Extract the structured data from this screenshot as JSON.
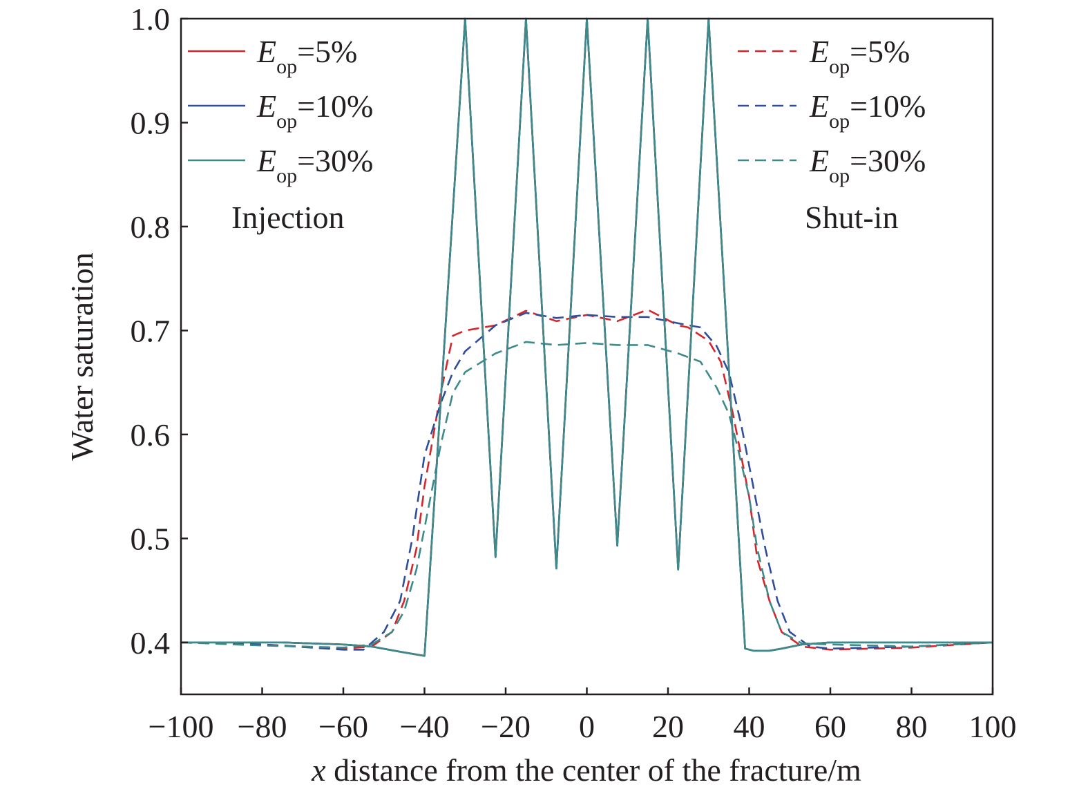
{
  "chart_data": {
    "type": "line",
    "xlabel": {
      "var": "x",
      "rest": " distance from the center of the fracture/m"
    },
    "ylabel": "Water saturation",
    "xlim": [
      -100,
      100
    ],
    "ylim": [
      0.35,
      1.0
    ],
    "xticks": [
      -100,
      -80,
      -60,
      -40,
      -20,
      0,
      20,
      40,
      60,
      80,
      100
    ],
    "yticks": [
      0.4,
      0.5,
      0.6,
      0.7,
      0.8,
      0.9,
      1.0
    ],
    "xtick_labels": [
      "−100",
      "−80",
      "−60",
      "−40",
      "−20",
      "0",
      "20",
      "40",
      "60",
      "80",
      "100"
    ],
    "ytick_labels": [
      "0.4",
      "0.5",
      "0.6",
      "0.7",
      "0.8",
      "0.9",
      "1.0"
    ],
    "grid": false,
    "legends": [
      {
        "position": "top-left",
        "title": "Injection",
        "style": "solid",
        "entries": [
          {
            "base": "E",
            "sub": "op",
            "rest": "=5%",
            "color": "#d7262b"
          },
          {
            "base": "E",
            "sub": "op",
            "rest": "=10%",
            "color": "#2f4d9a"
          },
          {
            "base": "E",
            "sub": "op",
            "rest": "=30%",
            "color": "#3e8a8b"
          }
        ]
      },
      {
        "position": "top-right",
        "title": "Shut-in",
        "style": "dashed",
        "entries": [
          {
            "base": "E",
            "sub": "op",
            "rest": "=5%",
            "color": "#d7262b"
          },
          {
            "base": "E",
            "sub": "op",
            "rest": "=10%",
            "color": "#2f4d9a"
          },
          {
            "base": "E",
            "sub": "op",
            "rest": "=30%",
            "color": "#3e8a8b"
          }
        ]
      }
    ],
    "series": [
      {
        "group": "Injection",
        "color": "#d7262b",
        "dash": false,
        "x": [
          -100,
          -75,
          -60,
          -53,
          -46,
          -40,
          -30,
          -22.5,
          -15,
          -7.5,
          0,
          7.5,
          15,
          22.5,
          30,
          39,
          41,
          45,
          48,
          53,
          60,
          75,
          100
        ],
        "y": [
          0.4,
          0.4,
          0.398,
          0.396,
          0.391,
          0.387,
          1.0,
          0.482,
          1.0,
          0.471,
          1.0,
          0.493,
          1.0,
          0.47,
          1.0,
          0.394,
          0.392,
          0.392,
          0.394,
          0.398,
          0.4,
          0.4,
          0.4
        ]
      },
      {
        "group": "Injection",
        "color": "#2f4d9a",
        "dash": false,
        "x": [
          -100,
          -75,
          -60,
          -53,
          -46,
          -40,
          -30,
          -22.5,
          -15,
          -7.5,
          0,
          7.5,
          15,
          22.5,
          30,
          39,
          41,
          45,
          48,
          53,
          60,
          75,
          100
        ],
        "y": [
          0.4,
          0.4,
          0.398,
          0.396,
          0.391,
          0.387,
          1.0,
          0.482,
          1.0,
          0.471,
          1.0,
          0.493,
          1.0,
          0.47,
          1.0,
          0.394,
          0.392,
          0.392,
          0.394,
          0.398,
          0.4,
          0.4,
          0.4
        ]
      },
      {
        "group": "Injection",
        "color": "#3e8a8b",
        "dash": false,
        "x": [
          -100,
          -75,
          -60,
          -53,
          -46,
          -40,
          -30,
          -22.5,
          -15,
          -7.5,
          0,
          7.5,
          15,
          22.5,
          30,
          39,
          41,
          45,
          48,
          53,
          60,
          75,
          100
        ],
        "y": [
          0.4,
          0.4,
          0.398,
          0.396,
          0.391,
          0.387,
          1.0,
          0.482,
          1.0,
          0.471,
          1.0,
          0.493,
          1.0,
          0.47,
          1.0,
          0.394,
          0.392,
          0.392,
          0.394,
          0.398,
          0.4,
          0.4,
          0.4
        ]
      },
      {
        "group": "Shut-in",
        "color": "#d7262b",
        "dash": true,
        "x": [
          -100,
          -80,
          -60,
          -53,
          -48,
          -45,
          -42,
          -40,
          -36,
          -33,
          -30,
          -22.5,
          -15,
          -7.5,
          0,
          7.5,
          15,
          22.5,
          25,
          30,
          33,
          36,
          40,
          42,
          45,
          48,
          53,
          60,
          80,
          100
        ],
        "y": [
          0.4,
          0.398,
          0.394,
          0.396,
          0.41,
          0.44,
          0.49,
          0.55,
          0.64,
          0.695,
          0.7,
          0.705,
          0.719,
          0.709,
          0.715,
          0.709,
          0.72,
          0.705,
          0.703,
          0.69,
          0.67,
          0.62,
          0.54,
          0.48,
          0.44,
          0.41,
          0.396,
          0.393,
          0.395,
          0.4
        ]
      },
      {
        "group": "Shut-in",
        "color": "#2f4d9a",
        "dash": true,
        "x": [
          -100,
          -80,
          -60,
          -55,
          -50,
          -46,
          -43,
          -40,
          -36,
          -33,
          -30,
          -22.5,
          -15,
          -7.5,
          0,
          7.5,
          15,
          22.5,
          28,
          32,
          35,
          38,
          41,
          44,
          47,
          50,
          55,
          60,
          80,
          100
        ],
        "y": [
          0.4,
          0.398,
          0.393,
          0.393,
          0.41,
          0.44,
          0.5,
          0.58,
          0.63,
          0.66,
          0.68,
          0.705,
          0.717,
          0.712,
          0.715,
          0.713,
          0.713,
          0.707,
          0.703,
          0.685,
          0.66,
          0.61,
          0.55,
          0.49,
          0.44,
          0.41,
          0.396,
          0.394,
          0.396,
          0.4
        ]
      },
      {
        "group": "Shut-in",
        "color": "#3e8a8b",
        "dash": true,
        "x": [
          -100,
          -80,
          -60,
          -53,
          -48,
          -45,
          -42,
          -40,
          -36,
          -33,
          -30,
          -22.5,
          -15,
          -7.5,
          0,
          7.5,
          15,
          22.5,
          28,
          32,
          35,
          37,
          40,
          42,
          45,
          48,
          53,
          60,
          80,
          100
        ],
        "y": [
          0.4,
          0.397,
          0.395,
          0.398,
          0.41,
          0.43,
          0.47,
          0.51,
          0.59,
          0.64,
          0.66,
          0.678,
          0.689,
          0.686,
          0.688,
          0.686,
          0.686,
          0.678,
          0.67,
          0.645,
          0.62,
          0.59,
          0.54,
          0.49,
          0.44,
          0.41,
          0.399,
          0.398,
          0.396,
          0.4
        ]
      }
    ]
  }
}
